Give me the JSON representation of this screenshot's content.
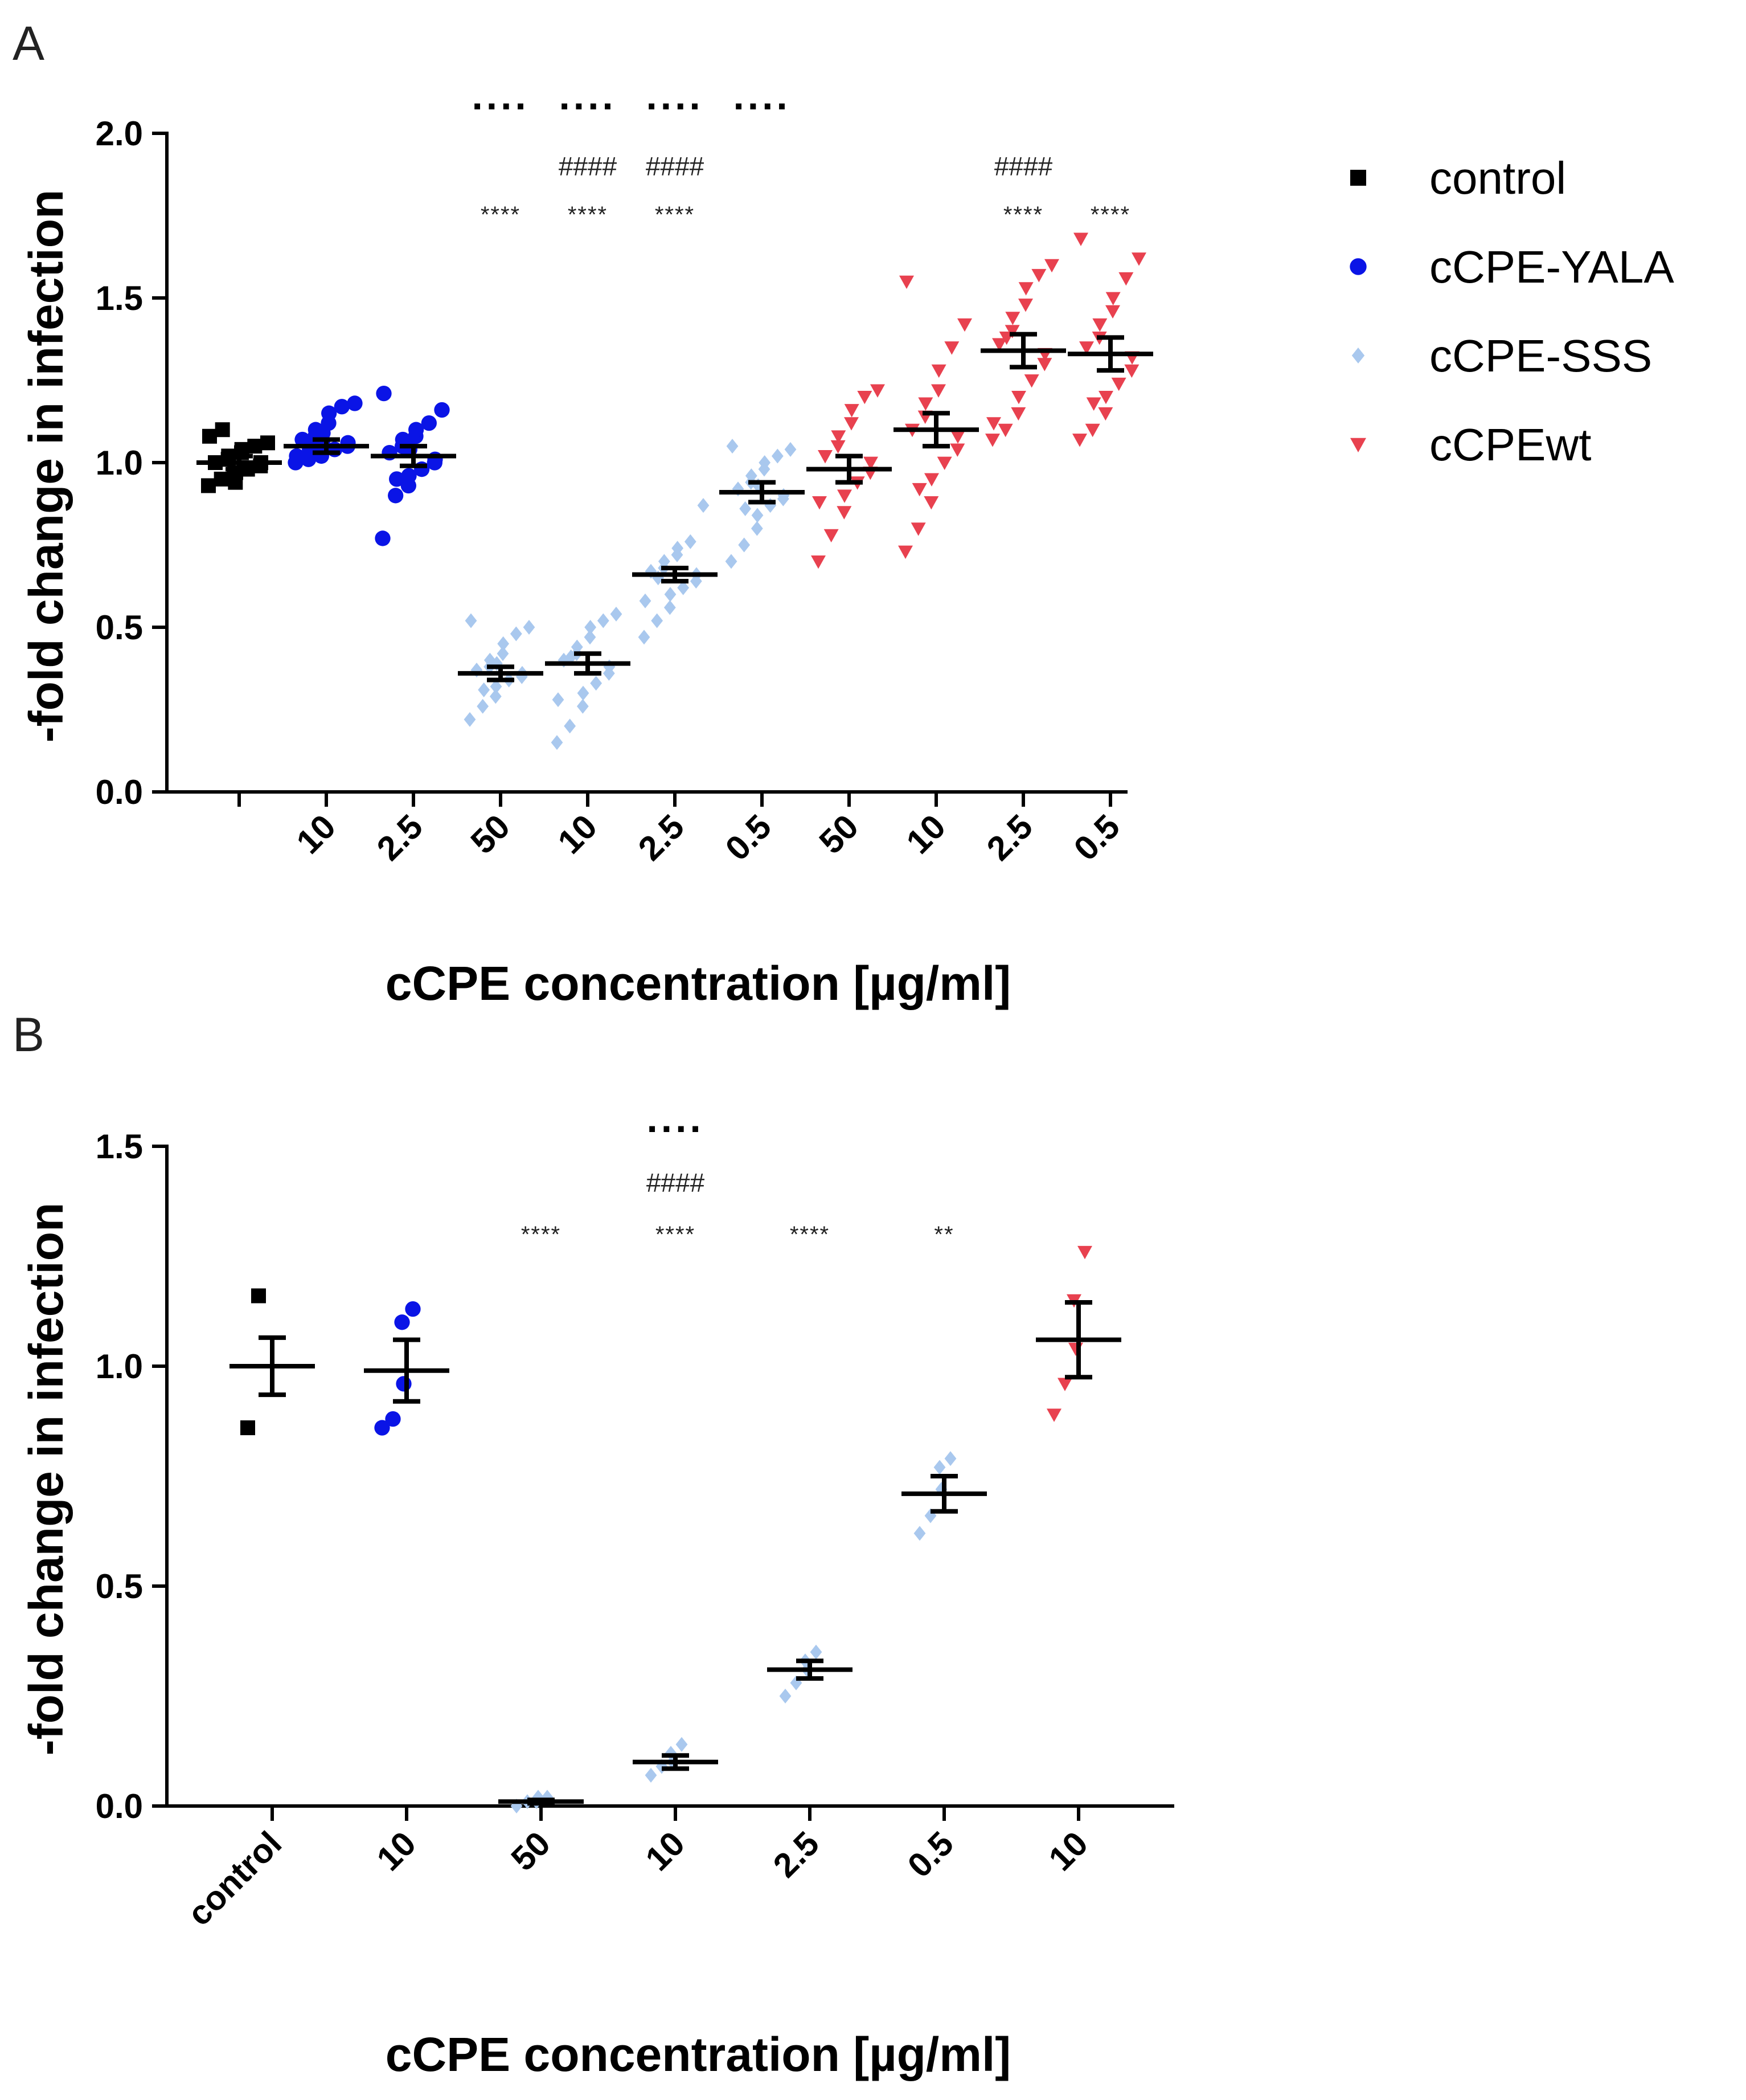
{
  "colors": {
    "control": "#000000",
    "cCPE-YALA": "#0a14e6",
    "cCPE-SSS": "#a9c8ee",
    "cCPEwt": "#e8414f"
  },
  "legend": [
    {
      "name": "control",
      "marker": "square"
    },
    {
      "name": "cCPE-YALA",
      "marker": "circle"
    },
    {
      "name": "cCPE-SSS",
      "marker": "diamond"
    },
    {
      "name": "cCPEwt",
      "marker": "triangle-down"
    }
  ],
  "chart_data": [
    {
      "panel": "A",
      "type": "scatter",
      "xlabel": "cCPE concentration [µg/ml]",
      "ylabel": "-fold change in infection",
      "ylim": [
        0,
        2.0
      ],
      "yticks": [
        "0.0",
        "0.5",
        "1.0",
        "1.5",
        "2.0"
      ],
      "categories": [
        {
          "label": "",
          "group": "control",
          "mean": 1.0,
          "sem": 0.02,
          "points": [
            0.93,
            0.95,
            0.96,
            0.97,
            0.98,
            0.99,
            1.0,
            1.0,
            1.01,
            1.02,
            1.03,
            1.04,
            1.05,
            1.06,
            1.08,
            1.1,
            0.94,
            0.97
          ]
        },
        {
          "label": "10",
          "group": "cCPE-YALA",
          "mean": 1.05,
          "sem": 0.02,
          "points": [
            1.0,
            1.01,
            1.02,
            1.03,
            1.04,
            1.05,
            1.06,
            1.07,
            1.08,
            1.1,
            1.12,
            1.15,
            1.17,
            1.18,
            1.02,
            1.04,
            1.06,
            1.09
          ]
        },
        {
          "label": "2.5",
          "group": "cCPE-YALA",
          "mean": 1.02,
          "sem": 0.03,
          "points": [
            0.77,
            0.9,
            0.93,
            0.96,
            0.98,
            1.0,
            1.01,
            1.03,
            1.05,
            1.07,
            1.08,
            1.1,
            1.12,
            1.16,
            1.21,
            0.95,
            1.04
          ]
        },
        {
          "label": "50",
          "group": "cCPE-SSS",
          "mean": 0.36,
          "sem": 0.02,
          "points": [
            0.22,
            0.26,
            0.29,
            0.32,
            0.34,
            0.35,
            0.36,
            0.37,
            0.38,
            0.4,
            0.42,
            0.45,
            0.48,
            0.5,
            0.52,
            0.31,
            0.39
          ]
        },
        {
          "label": "10",
          "group": "cCPE-SSS",
          "mean": 0.39,
          "sem": 0.03,
          "points": [
            0.15,
            0.2,
            0.26,
            0.3,
            0.33,
            0.36,
            0.38,
            0.4,
            0.42,
            0.44,
            0.47,
            0.5,
            0.52,
            0.54,
            0.28,
            0.41
          ]
        },
        {
          "label": "2.5",
          "group": "cCPE-SSS",
          "mean": 0.66,
          "sem": 0.02,
          "points": [
            0.47,
            0.52,
            0.56,
            0.6,
            0.62,
            0.64,
            0.66,
            0.67,
            0.68,
            0.7,
            0.72,
            0.74,
            0.76,
            0.87,
            0.58,
            0.65
          ]
        },
        {
          "label": "0.5",
          "group": "cCPE-SSS",
          "mean": 0.91,
          "sem": 0.03,
          "points": [
            0.7,
            0.75,
            0.8,
            0.84,
            0.87,
            0.89,
            0.9,
            0.92,
            0.94,
            0.96,
            0.98,
            1.0,
            1.02,
            1.04,
            1.05,
            0.86,
            0.93
          ]
        },
        {
          "label": "50",
          "group": "cCPEwt",
          "mean": 0.98,
          "sem": 0.04,
          "points": [
            0.7,
            0.78,
            0.85,
            0.9,
            0.94,
            0.97,
            1.0,
            1.02,
            1.05,
            1.08,
            1.12,
            1.16,
            1.2,
            1.22,
            0.88
          ]
        },
        {
          "label": "10",
          "group": "cCPEwt",
          "mean": 1.1,
          "sem": 0.05,
          "points": [
            0.73,
            0.8,
            0.88,
            0.95,
            1.0,
            1.04,
            1.08,
            1.1,
            1.14,
            1.18,
            1.22,
            1.28,
            1.35,
            1.42,
            1.55,
            0.92
          ]
        },
        {
          "label": "2.5",
          "group": "cCPEwt",
          "mean": 1.34,
          "sem": 0.05,
          "points": [
            1.07,
            1.1,
            1.15,
            1.2,
            1.25,
            1.3,
            1.33,
            1.36,
            1.4,
            1.44,
            1.48,
            1.53,
            1.57,
            1.6,
            1.12,
            1.38
          ]
        },
        {
          "label": "0.5",
          "group": "cCPEwt",
          "mean": 1.33,
          "sem": 0.05,
          "points": [
            1.07,
            1.1,
            1.15,
            1.2,
            1.24,
            1.28,
            1.32,
            1.35,
            1.38,
            1.42,
            1.46,
            1.5,
            1.56,
            1.62,
            1.68,
            1.18
          ]
        }
      ],
      "annotations": [
        {
          "cat": 3,
          "stars": "****",
          "hash": "",
          "dots": "····"
        },
        {
          "cat": 4,
          "stars": "****",
          "hash": "####",
          "dots": "····"
        },
        {
          "cat": 5,
          "stars": "****",
          "hash": "####",
          "dots": "····"
        },
        {
          "cat": 6,
          "stars": "",
          "hash": "",
          "dots": "····"
        },
        {
          "cat": 9,
          "stars": "****",
          "hash": "####",
          "dots": ""
        },
        {
          "cat": 10,
          "stars": "****",
          "hash": "",
          "dots": ""
        }
      ]
    },
    {
      "panel": "B",
      "type": "scatter",
      "xlabel": "cCPE concentration [µg/ml]",
      "ylabel": "-fold change in infection",
      "ylim": [
        0,
        1.5
      ],
      "yticks": [
        "0.0",
        "0.5",
        "1.0",
        "1.5"
      ],
      "categories": [
        {
          "label": "control",
          "group": "control",
          "mean": 1.0,
          "sem": 0.065,
          "points": [
            0.86,
            1.16
          ]
        },
        {
          "label": "10",
          "group": "cCPE-YALA",
          "mean": 0.99,
          "sem": 0.07,
          "points": [
            0.86,
            0.88,
            0.96,
            1.1,
            1.13
          ]
        },
        {
          "label": "50",
          "group": "cCPE-SSS",
          "mean": 0.01,
          "sem": 0.004,
          "points": [
            0.0,
            0.01,
            0.02,
            0.01,
            0.02
          ]
        },
        {
          "label": "10",
          "group": "cCPE-SSS",
          "mean": 0.1,
          "sem": 0.015,
          "points": [
            0.07,
            0.09,
            0.1,
            0.12,
            0.14
          ]
        },
        {
          "label": "2.5",
          "group": "cCPE-SSS",
          "mean": 0.31,
          "sem": 0.02,
          "points": [
            0.25,
            0.28,
            0.31,
            0.33,
            0.35
          ]
        },
        {
          "label": "0.5",
          "group": "cCPE-SSS",
          "mean": 0.71,
          "sem": 0.04,
          "points": [
            0.62,
            0.66,
            0.72,
            0.77,
            0.79
          ]
        },
        {
          "label": "10",
          "group": "cCPEwt",
          "mean": 1.06,
          "sem": 0.085,
          "points": [
            0.89,
            0.96,
            1.04,
            1.15,
            1.26
          ]
        }
      ],
      "annotations": [
        {
          "cat": 2,
          "stars": "****",
          "hash": "",
          "dots": ""
        },
        {
          "cat": 3,
          "stars": "****",
          "hash": "####",
          "dots": "····"
        },
        {
          "cat": 4,
          "stars": "****",
          "hash": "",
          "dots": ""
        },
        {
          "cat": 5,
          "stars": "**",
          "hash": "",
          "dots": ""
        }
      ]
    }
  ]
}
